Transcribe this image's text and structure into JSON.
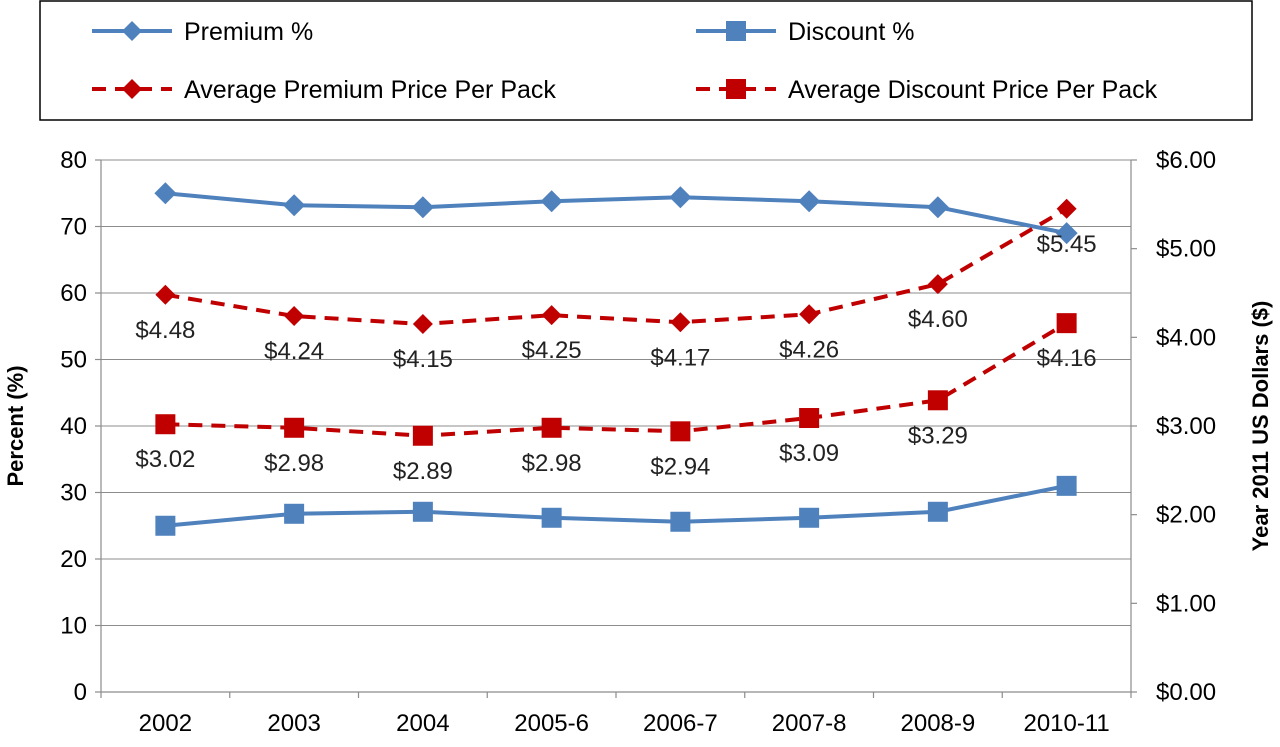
{
  "chart_data": {
    "type": "line",
    "categories": [
      "2002",
      "2003",
      "2004",
      "2005-6",
      "2006-7",
      "2007-8",
      "2008-9",
      "2010-11"
    ],
    "series": [
      {
        "name": "Premium %",
        "axis": "left",
        "color": "#4f81bd",
        "marker": "diamond",
        "dashed": false,
        "values": [
          75,
          73.2,
          72.9,
          73.8,
          74.4,
          73.8,
          72.9,
          69
        ]
      },
      {
        "name": "Discount %",
        "axis": "left",
        "color": "#4f81bd",
        "marker": "square",
        "dashed": false,
        "values": [
          25,
          26.8,
          27.1,
          26.2,
          25.6,
          26.2,
          27.1,
          31
        ]
      },
      {
        "name": "Average Premium Price Per Pack",
        "axis": "right",
        "color": "#c00000",
        "marker": "diamond",
        "dashed": true,
        "values": [
          4.48,
          4.24,
          4.15,
          4.25,
          4.17,
          4.26,
          4.6,
          5.45
        ],
        "labels": [
          "$4.48",
          "$4.24",
          "$4.15",
          "$4.25",
          "$4.17",
          "$4.26",
          "$4.60",
          "$5.45"
        ]
      },
      {
        "name": "Average Discount Price Per Pack",
        "axis": "right",
        "color": "#c00000",
        "marker": "square",
        "dashed": true,
        "values": [
          3.02,
          2.98,
          2.89,
          2.98,
          2.94,
          3.09,
          3.29,
          4.16
        ],
        "labels": [
          "$3.02",
          "$2.98",
          "$2.89",
          "$2.98",
          "$2.94",
          "$3.09",
          "$3.29",
          "$4.16"
        ]
      }
    ],
    "ylabel": "Percent (%)",
    "ylim": [
      0,
      80
    ],
    "yticks": [
      "0",
      "10",
      "20",
      "30",
      "40",
      "50",
      "60",
      "70",
      "80"
    ],
    "y2label": "Year 2011 US Dollars ($)",
    "y2lim": [
      0,
      6
    ],
    "y2ticks": [
      "$0.00",
      "$1.00",
      "$2.00",
      "$3.00",
      "$4.00",
      "$5.00",
      "$6.00"
    ],
    "grid": "horizontal",
    "legend_position": "top"
  }
}
